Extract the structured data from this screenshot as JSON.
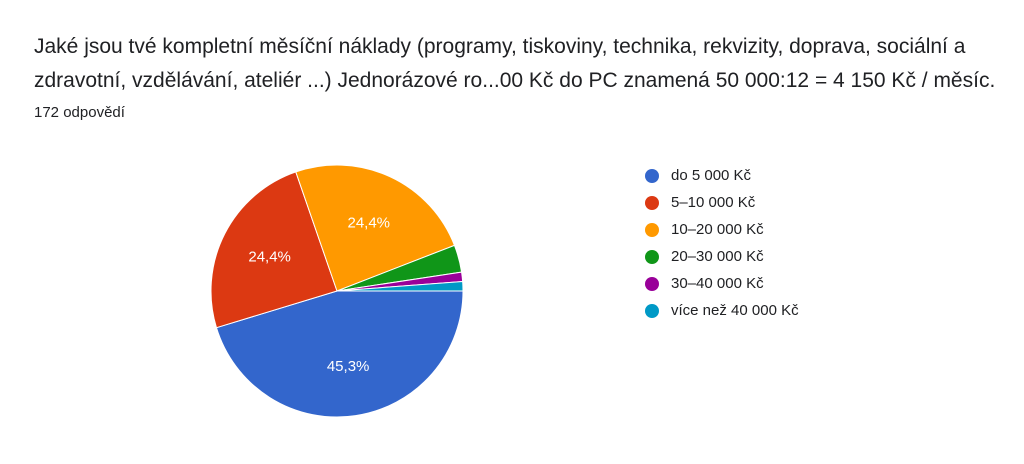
{
  "question": {
    "title": "Jaké jsou tvé kompletní měsíční náklady (programy, tiskoviny, technika, rekvizity, doprava, sociální a zdravotní, vzdělávání, ateliér ...)  Jednorázové ro...00 Kč do PC znamená 50 000:12 = 4 150 Kč / měsíc.",
    "responses": "172 odpovědí"
  },
  "chart_data": {
    "type": "pie",
    "categories": [
      "do 5 000 Kč",
      "5–10 000 Kč",
      "10–20 000 Kč",
      "20–30 000 Kč",
      "30–40 000 Kč",
      "více než 40 000 Kč"
    ],
    "values": [
      45.3,
      24.4,
      24.4,
      3.5,
      1.2,
      1.2
    ],
    "colors": [
      "#3366cc",
      "#dc3912",
      "#ff9900",
      "#109618",
      "#990099",
      "#0099c6"
    ],
    "data_labels": [
      "45,3%",
      "24,4%",
      "24,4%",
      "",
      "",
      ""
    ],
    "legend_position": "right"
  }
}
